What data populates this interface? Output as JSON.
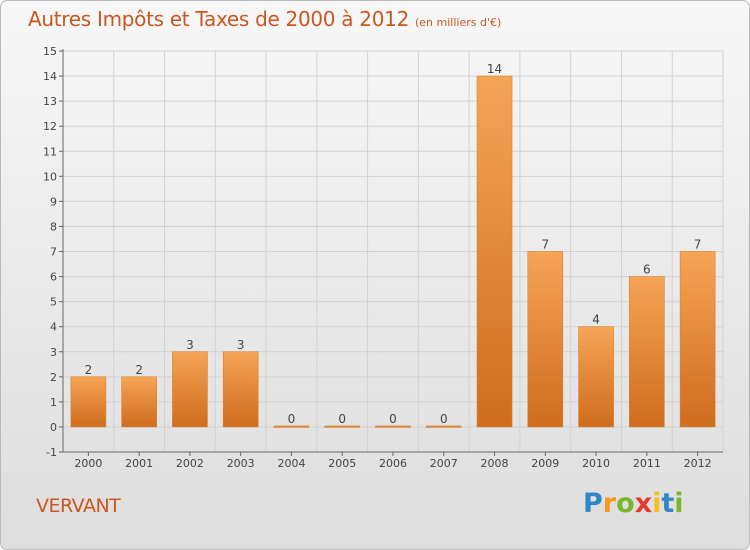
{
  "chart_data": {
    "type": "bar",
    "title": "Autres Impôts et Taxes de 2000 à 2012",
    "subtitle": "(en milliers d'€)",
    "xlabel": "",
    "ylabel": "",
    "categories": [
      "2000",
      "2001",
      "2002",
      "2003",
      "2004",
      "2005",
      "2006",
      "2007",
      "2008",
      "2009",
      "2010",
      "2011",
      "2012"
    ],
    "values": [
      2,
      2,
      3,
      3,
      0,
      0,
      0,
      0,
      14,
      7,
      4,
      6,
      7
    ],
    "data_labels": [
      "2",
      "2",
      "3",
      "3",
      "0",
      "0",
      "0",
      "0",
      "14",
      "7",
      "4",
      "6",
      "7"
    ],
    "ylim": [
      -1,
      15
    ],
    "yticks": [
      -1,
      0,
      1,
      2,
      3,
      4,
      5,
      6,
      7,
      8,
      9,
      10,
      11,
      12,
      13,
      14,
      15
    ],
    "ytick_labels": [
      "-1",
      "0",
      "1",
      "2",
      "3",
      "4",
      "5",
      "6",
      "7",
      "8",
      "9",
      "10",
      "11",
      "12",
      "13",
      "14",
      "15"
    ],
    "grid": true,
    "legend": "none",
    "colors": {
      "bar_light": "#f6a456",
      "bar_dark": "#cf6c1d",
      "title": "#c9571f",
      "grid": "#d2d2d2",
      "axis": "#666666"
    }
  },
  "footer": {
    "commune": "VERVANT"
  },
  "logo": {
    "text": "Proxiti",
    "letters": [
      {
        "char": "P",
        "color": "#2f86c8"
      },
      {
        "char": "r",
        "color": "#f39a1a"
      },
      {
        "char": "o",
        "color": "#7ab728"
      },
      {
        "char": "x",
        "color": "#e23b2a"
      },
      {
        "char": "i",
        "color": "#f3c11a"
      },
      {
        "char": "t",
        "color": "#2f86c8"
      },
      {
        "char": "i",
        "color": "#7ab728"
      }
    ]
  }
}
